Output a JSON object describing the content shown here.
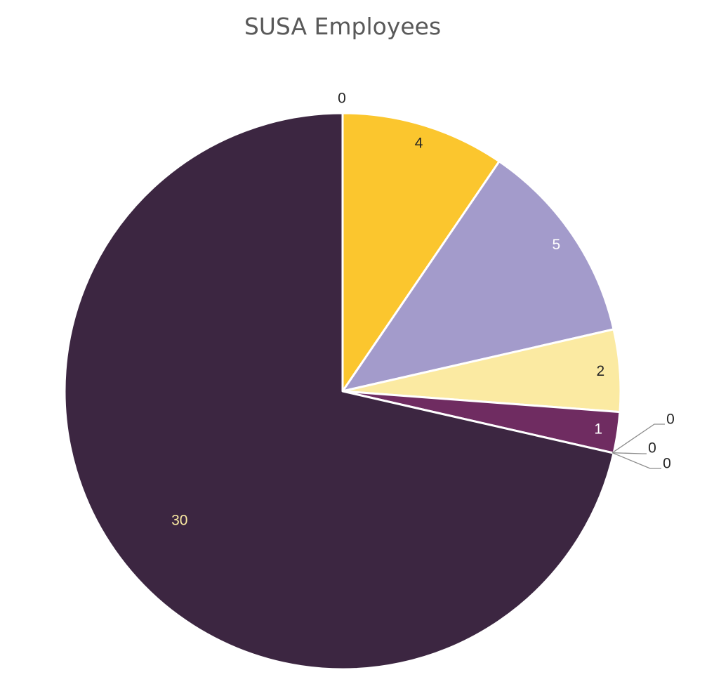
{
  "chart_data": {
    "type": "pie",
    "title": "SUSA Employees",
    "slices": [
      {
        "value": 0,
        "label": "0",
        "color": "#6f2c61",
        "label_color": "#262626"
      },
      {
        "value": 4,
        "label": "4",
        "color": "#fbc62e",
        "label_color": "#262626"
      },
      {
        "value": 5,
        "label": "5",
        "color": "#a39bcb",
        "label_color": "#ffffff"
      },
      {
        "value": 2,
        "label": "2",
        "color": "#fbeaa2",
        "label_color": "#262626"
      },
      {
        "value": 1,
        "label": "1",
        "color": "#6f2c61",
        "label_color": "#ffffff"
      },
      {
        "value": 0,
        "label": "0",
        "color": "#a39bcb",
        "label_color": "#262626"
      },
      {
        "value": 0,
        "label": "0",
        "color": "#fbc62e",
        "label_color": "#262626"
      },
      {
        "value": 0,
        "label": "0",
        "color": "#fbeaa2",
        "label_color": "#262626"
      },
      {
        "value": 30,
        "label": "30",
        "color": "#3c2641",
        "label_color": "#fbeaa2"
      }
    ],
    "start_angle": "12 o'clock",
    "direction": "clockwise",
    "legend": "none"
  }
}
